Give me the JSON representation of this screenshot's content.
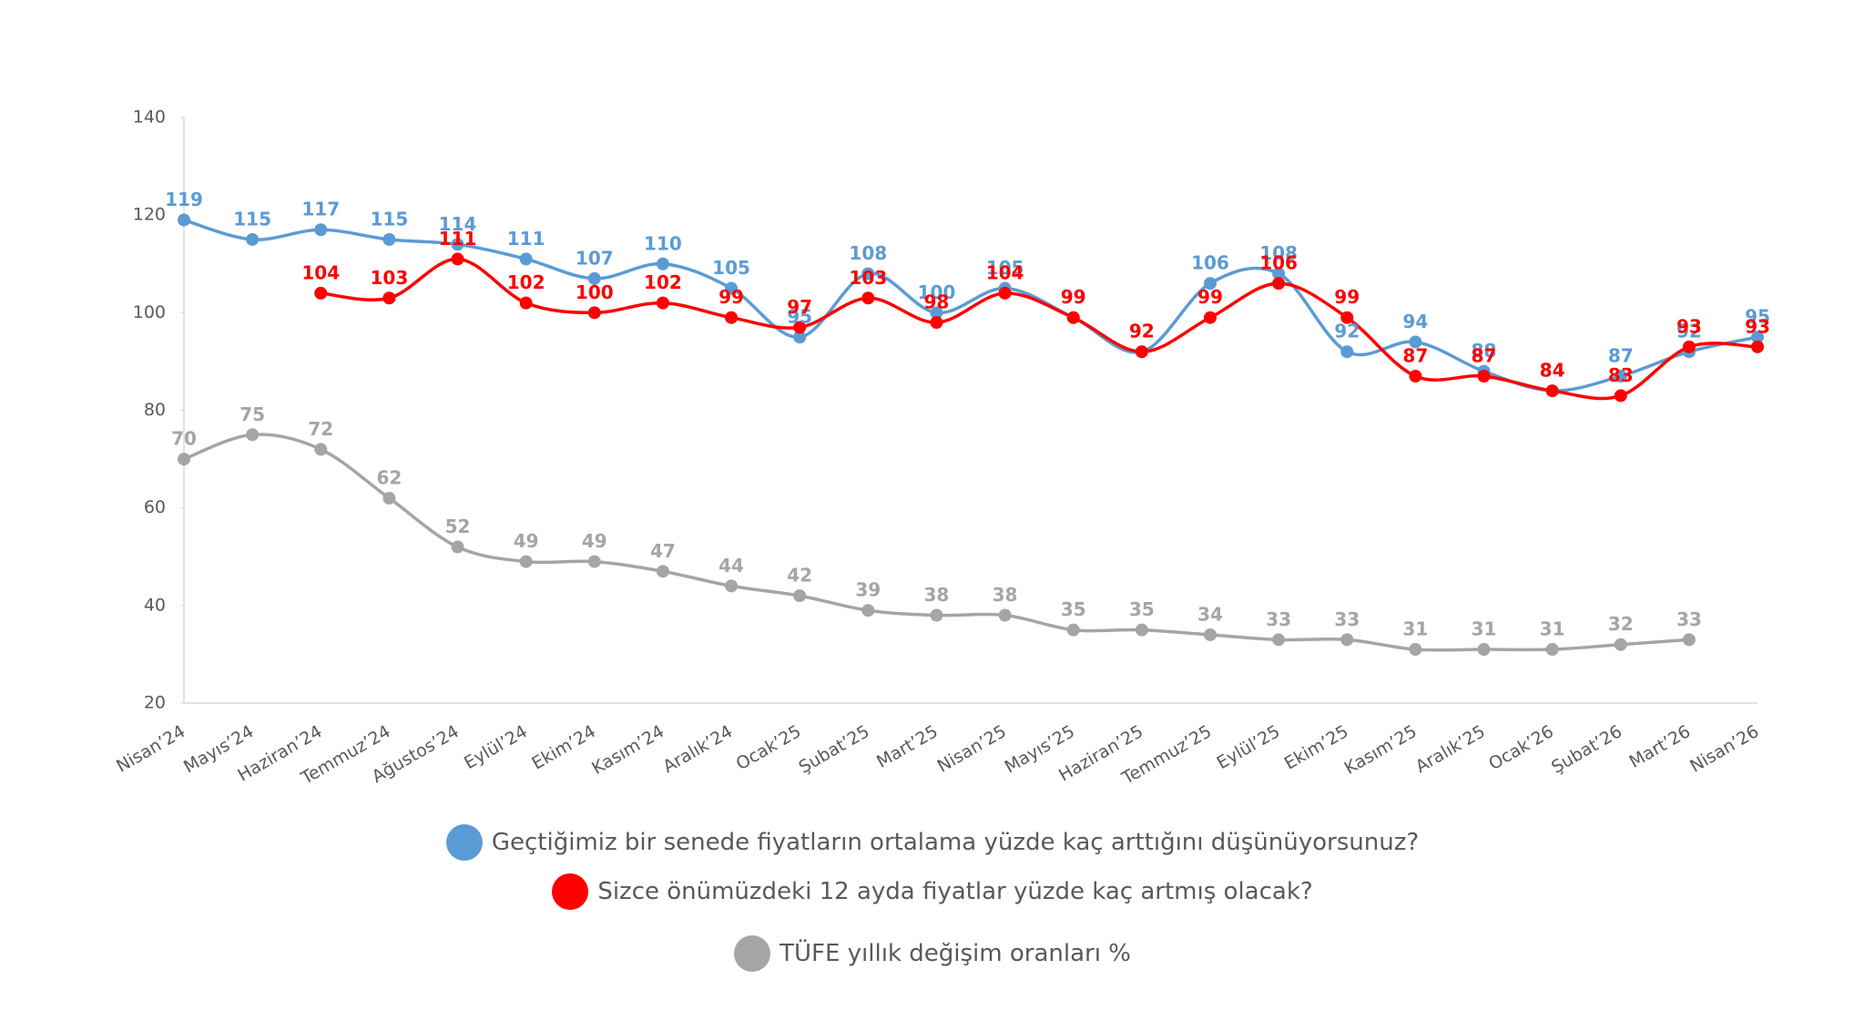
{
  "chart_data": {
    "type": "line",
    "categories": [
      "Nisan’24",
      "Mayıs’24",
      "Haziran’24",
      "Temmuz’24",
      "Ağustos’24",
      "Eylül’24",
      "Ekim’24",
      "Kasım’24",
      "Aralık’24",
      "Ocak’25",
      "Şubat’25",
      "Mart’25",
      "Nisan’25",
      "Mayıs’25",
      "Haziran’25",
      "Temmuz’25",
      "Eylül’25",
      "Ekim’25",
      "Kasım’25",
      "Aralık’25",
      "Ocak’26",
      "Şubat’26",
      "Mart’26",
      "Nisan’26"
    ],
    "series": [
      {
        "name": "Geçtiğimiz bir senede fiyatların ortalama yüzde kaç arttığını düşünüyorsunuz?",
        "color": "#5b9bd5",
        "values": [
          119,
          115,
          117,
          115,
          114,
          111,
          107,
          110,
          105,
          95,
          108,
          100,
          105,
          99,
          92,
          106,
          108,
          92,
          94,
          88,
          84,
          87,
          92,
          95
        ]
      },
      {
        "name": "Sizce önümüzdeki 12 ayda fiyatlar yüzde kaç artmış olacak?",
        "color": "#ff0000",
        "values": [
          null,
          null,
          104,
          103,
          111,
          102,
          100,
          102,
          99,
          97,
          103,
          98,
          104,
          99,
          92,
          99,
          106,
          99,
          87,
          87,
          84,
          83,
          93,
          93
        ]
      },
      {
        "name": "TÜFE yıllık değişim oranları %",
        "color": "#a5a5a5",
        "values": [
          70,
          75,
          72,
          62,
          52,
          49,
          49,
          47,
          44,
          42,
          39,
          38,
          38,
          35,
          35,
          34,
          33,
          33,
          31,
          31,
          31,
          32,
          33,
          null
        ]
      }
    ],
    "ylim": [
      20,
      140
    ],
    "yticks": [
      20,
      40,
      60,
      80,
      100,
      120,
      140
    ],
    "smooth": true
  }
}
